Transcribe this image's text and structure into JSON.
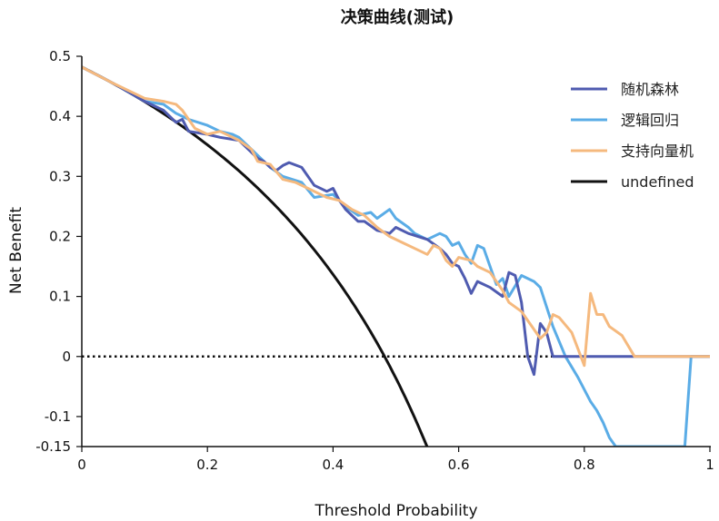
{
  "chart_data": {
    "type": "line",
    "title": "决策曲线(测试)",
    "xlabel": "Threshold Probability",
    "ylabel": "Net Benefit",
    "xlim": [
      0,
      1
    ],
    "ylim": [
      -0.15,
      0.5
    ],
    "xticks": [
      0,
      0.2,
      0.4,
      0.6,
      0.8,
      1
    ],
    "xtick_labels": [
      "0",
      "0.2",
      "0.4",
      "0.6",
      "0.8",
      "1"
    ],
    "yticks": [
      0.5,
      0.4,
      0.3,
      0.2,
      0.1,
      0,
      -0.1,
      -0.15
    ],
    "ytick_labels": [
      "0.5",
      "0.4",
      "0.3",
      "0.2",
      "0.1",
      "0",
      "-0.1",
      "-0.15"
    ],
    "legend_position": "top-right",
    "series": [
      {
        "name": "随机森林",
        "color": "#4f5bb0",
        "x": [
          0,
          0.05,
          0.1,
          0.13,
          0.15,
          0.16,
          0.17,
          0.2,
          0.22,
          0.25,
          0.27,
          0.28,
          0.29,
          0.3,
          0.31,
          0.32,
          0.33,
          0.35,
          0.37,
          0.39,
          0.4,
          0.41,
          0.42,
          0.43,
          0.44,
          0.45,
          0.47,
          0.49,
          0.5,
          0.52,
          0.55,
          0.57,
          0.58,
          0.59,
          0.6,
          0.61,
          0.62,
          0.63,
          0.65,
          0.67,
          0.68,
          0.69,
          0.7,
          0.71,
          0.72,
          0.73,
          0.74,
          0.75,
          0.8,
          1.0
        ],
        "y": [
          0.482,
          0.455,
          0.425,
          0.41,
          0.39,
          0.395,
          0.375,
          0.37,
          0.365,
          0.36,
          0.34,
          0.33,
          0.325,
          0.315,
          0.31,
          0.318,
          0.323,
          0.315,
          0.285,
          0.275,
          0.28,
          0.26,
          0.245,
          0.235,
          0.225,
          0.225,
          0.21,
          0.205,
          0.215,
          0.205,
          0.195,
          0.18,
          0.17,
          0.155,
          0.15,
          0.13,
          0.105,
          0.125,
          0.115,
          0.1,
          0.14,
          0.135,
          0.09,
          0.0,
          -0.03,
          0.055,
          0.04,
          0.0,
          0.0,
          0.0
        ]
      },
      {
        "name": "逻辑回归",
        "color": "#5aace6",
        "x": [
          0,
          0.05,
          0.1,
          0.13,
          0.15,
          0.17,
          0.2,
          0.22,
          0.24,
          0.25,
          0.27,
          0.28,
          0.3,
          0.32,
          0.35,
          0.37,
          0.4,
          0.42,
          0.44,
          0.46,
          0.47,
          0.49,
          0.5,
          0.52,
          0.53,
          0.55,
          0.57,
          0.58,
          0.59,
          0.6,
          0.61,
          0.62,
          0.63,
          0.64,
          0.66,
          0.67,
          0.68,
          0.7,
          0.72,
          0.73,
          0.75,
          0.77,
          0.79,
          0.81,
          0.82,
          0.83,
          0.84,
          0.85,
          0.96,
          0.97,
          1.0
        ],
        "y": [
          0.482,
          0.455,
          0.425,
          0.42,
          0.405,
          0.395,
          0.385,
          0.375,
          0.37,
          0.365,
          0.345,
          0.335,
          0.315,
          0.3,
          0.29,
          0.265,
          0.27,
          0.25,
          0.235,
          0.24,
          0.23,
          0.245,
          0.23,
          0.215,
          0.205,
          0.195,
          0.205,
          0.2,
          0.185,
          0.19,
          0.17,
          0.155,
          0.185,
          0.18,
          0.12,
          0.13,
          0.1,
          0.135,
          0.125,
          0.115,
          0.05,
          0.0,
          -0.035,
          -0.075,
          -0.09,
          -0.11,
          -0.135,
          -0.15,
          -0.15,
          0.0,
          0.0
        ]
      },
      {
        "name": "支持向量机",
        "color": "#f5b97e",
        "x": [
          0,
          0.05,
          0.1,
          0.13,
          0.15,
          0.16,
          0.18,
          0.2,
          0.22,
          0.25,
          0.27,
          0.28,
          0.3,
          0.32,
          0.34,
          0.36,
          0.38,
          0.39,
          0.41,
          0.43,
          0.45,
          0.47,
          0.49,
          0.51,
          0.53,
          0.55,
          0.56,
          0.57,
          0.58,
          0.59,
          0.6,
          0.62,
          0.63,
          0.65,
          0.66,
          0.67,
          0.68,
          0.7,
          0.71,
          0.72,
          0.73,
          0.74,
          0.75,
          0.76,
          0.78,
          0.8,
          0.81,
          0.82,
          0.83,
          0.84,
          0.86,
          0.88,
          1.0
        ],
        "y": [
          0.482,
          0.455,
          0.43,
          0.425,
          0.42,
          0.41,
          0.38,
          0.37,
          0.375,
          0.36,
          0.345,
          0.325,
          0.32,
          0.295,
          0.29,
          0.28,
          0.27,
          0.265,
          0.26,
          0.245,
          0.235,
          0.215,
          0.2,
          0.19,
          0.18,
          0.17,
          0.185,
          0.18,
          0.16,
          0.15,
          0.165,
          0.16,
          0.15,
          0.14,
          0.125,
          0.11,
          0.09,
          0.075,
          0.06,
          0.045,
          0.03,
          0.04,
          0.07,
          0.065,
          0.04,
          -0.015,
          0.105,
          0.07,
          0.07,
          0.05,
          0.035,
          0.0,
          0.0
        ]
      },
      {
        "name": "undefined",
        "color": "#111111",
        "type": "treat-all",
        "prevalence": 0.482,
        "x": [
          0,
          0.05,
          0.1,
          0.15,
          0.2,
          0.25,
          0.3,
          0.35,
          0.4,
          0.45,
          0.48,
          0.5,
          0.55
        ],
        "y": [
          0.482,
          0.455,
          0.424,
          0.391,
          0.352,
          0.309,
          0.26,
          0.203,
          0.137,
          0.058,
          0.002,
          -0.036,
          -0.151
        ]
      }
    ],
    "reference_lines": [
      {
        "name": "treat-none",
        "y": 0,
        "style": "dotted",
        "color": "#111111"
      }
    ]
  }
}
